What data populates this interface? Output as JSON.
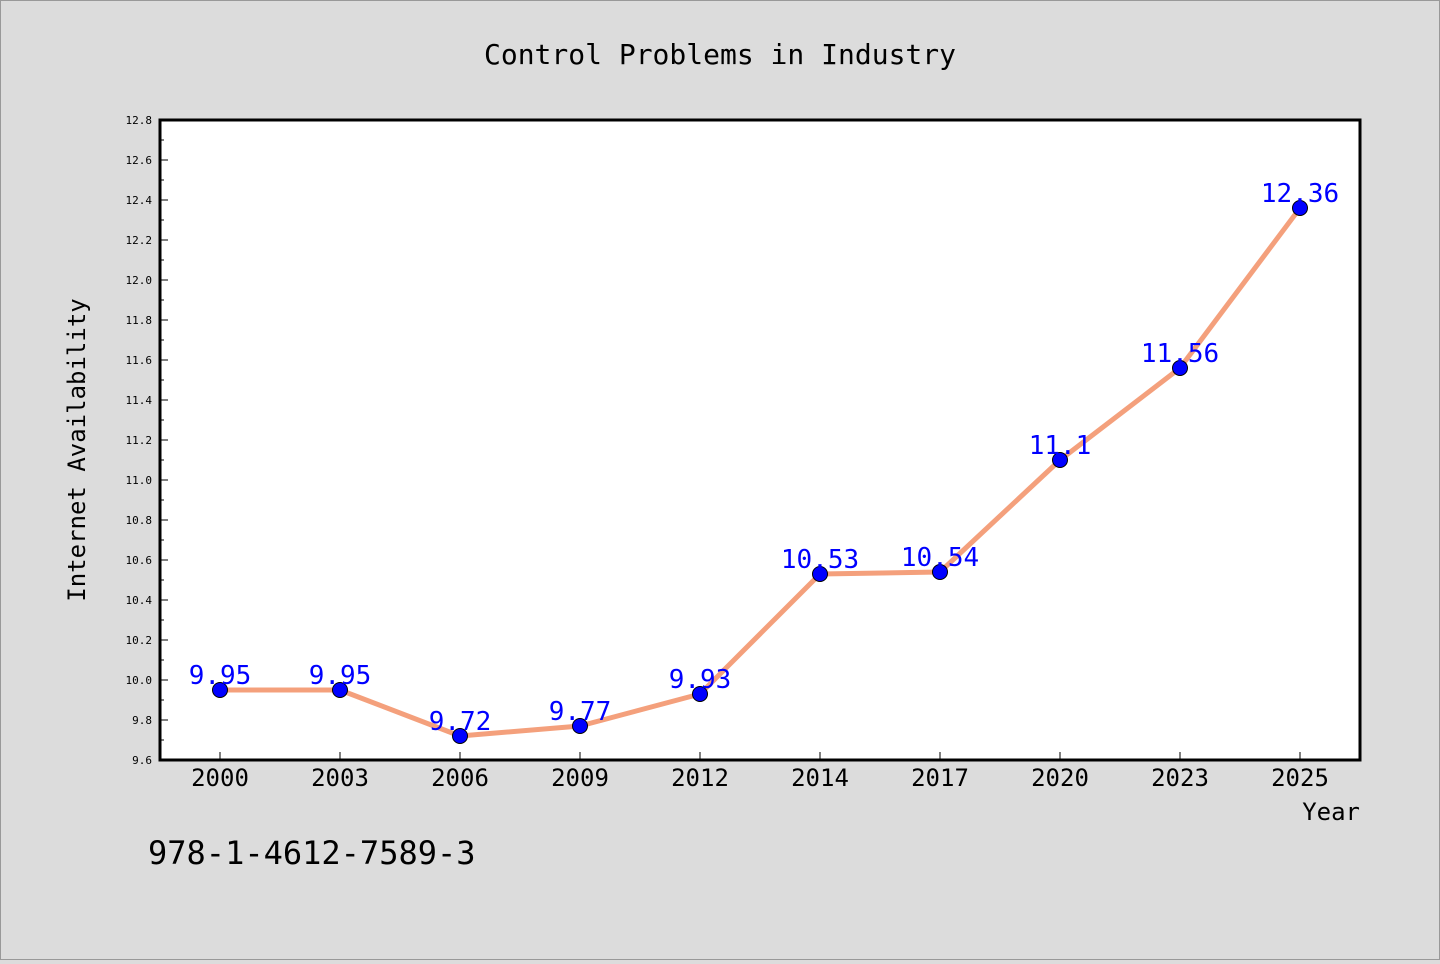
{
  "chart_data": {
    "type": "line",
    "title": "Control Problems in Industry",
    "xlabel": "Year",
    "ylabel": "Internet Availability",
    "categories": [
      "2000",
      "2003",
      "2006",
      "2009",
      "2012",
      "2014",
      "2017",
      "2020",
      "2023",
      "2025"
    ],
    "series": [
      {
        "values": [
          9.95,
          9.95,
          9.72,
          9.77,
          9.93,
          10.53,
          10.54,
          11.1,
          11.56,
          12.36
        ]
      }
    ],
    "data_labels": [
      "9.95",
      "9.95",
      "9.72",
      "9.77",
      "9.93",
      "10.53",
      "10.54",
      "11.1",
      "11.56",
      "12.36"
    ],
    "ylim": [
      9.6,
      12.8
    ],
    "y_ticks": [
      "9.6",
      "9.8",
      "10.0",
      "10.2",
      "10.4",
      "10.6",
      "10.8",
      "11.0",
      "11.2",
      "11.4",
      "11.6",
      "11.8",
      "12.0",
      "12.2",
      "12.4",
      "12.6",
      "12.8"
    ],
    "grid": false,
    "legend": "none",
    "colors": {
      "line": "#f4a07c",
      "marker": "#0000ff",
      "label": "#0000ff",
      "background": "#dcdcdc",
      "plot_background": "#ffffff"
    }
  },
  "footer_text": "978-1-4612-7589-3"
}
